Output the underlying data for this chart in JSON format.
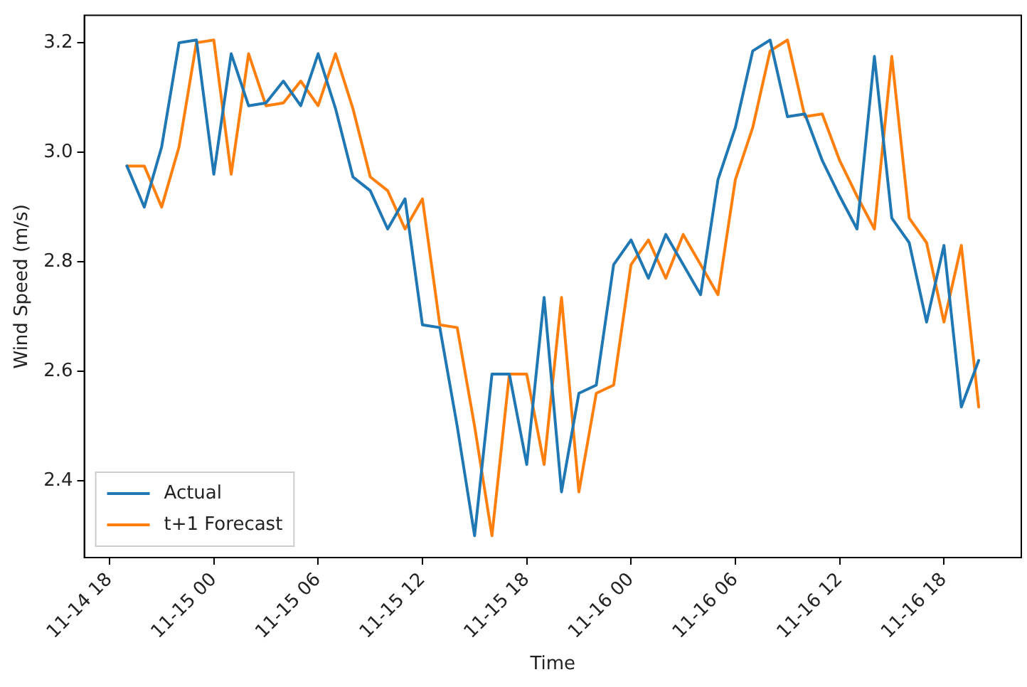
{
  "chart_data": {
    "type": "line",
    "xlabel": "Time",
    "ylabel": "Wind Speed (m/s)",
    "x": [
      "--11-14T19:00",
      "--11-14T20:00",
      "--11-14T21:00",
      "--11-14T22:00",
      "--11-14T23:00",
      "--11-15T00:00",
      "--11-15T01:00",
      "--11-15T02:00",
      "--11-15T03:00",
      "--11-15T04:00",
      "--11-15T05:00",
      "--11-15T06:00",
      "--11-15T07:00",
      "--11-15T08:00",
      "--11-15T09:00",
      "--11-15T10:00",
      "--11-15T11:00",
      "--11-15T12:00",
      "--11-15T13:00",
      "--11-15T14:00",
      "--11-15T15:00",
      "--11-15T16:00",
      "--11-15T17:00",
      "--11-15T18:00",
      "--11-15T19:00",
      "--11-15T20:00",
      "--11-15T21:00",
      "--11-15T22:00",
      "--11-15T23:00",
      "--11-16T00:00",
      "--11-16T01:00",
      "--11-16T02:00",
      "--11-16T03:00",
      "--11-16T04:00",
      "--11-16T05:00",
      "--11-16T06:00",
      "--11-16T07:00",
      "--11-16T08:00",
      "--11-16T09:00",
      "--11-16T10:00",
      "--11-16T11:00",
      "--11-16T12:00",
      "--11-16T13:00",
      "--11-16T14:00",
      "--11-16T15:00",
      "--11-16T16:00",
      "--11-16T17:00",
      "--11-16T18:00",
      "--11-16T19:00",
      "--11-16T20:00"
    ],
    "series": [
      {
        "name": "Actual",
        "color": "#1f77b4",
        "values": [
          2.975,
          2.9,
          3.01,
          3.2,
          3.205,
          2.96,
          3.18,
          3.085,
          3.09,
          3.13,
          3.085,
          3.18,
          3.08,
          2.955,
          2.93,
          2.86,
          2.915,
          2.685,
          2.68,
          2.5,
          2.3,
          2.595,
          2.595,
          2.43,
          2.735,
          2.38,
          2.56,
          2.575,
          2.795,
          2.84,
          2.77,
          2.85,
          2.795,
          2.74,
          2.95,
          3.045,
          3.185,
          3.205,
          3.065,
          3.07,
          2.985,
          2.92,
          2.86,
          3.175,
          2.88,
          2.835,
          2.69,
          2.83,
          2.535,
          2.62
        ]
      },
      {
        "name": "t+1 Forecast",
        "color": "#ff7f0e",
        "values": [
          2.975,
          2.975,
          2.9,
          3.01,
          3.2,
          3.205,
          2.96,
          3.18,
          3.085,
          3.09,
          3.13,
          3.085,
          3.18,
          3.08,
          2.955,
          2.93,
          2.86,
          2.915,
          2.685,
          2.68,
          2.5,
          2.3,
          2.595,
          2.595,
          2.43,
          2.735,
          2.38,
          2.56,
          2.575,
          2.795,
          2.84,
          2.77,
          2.85,
          2.795,
          2.74,
          2.95,
          3.045,
          3.185,
          3.205,
          3.065,
          3.07,
          2.985,
          2.92,
          2.86,
          3.175,
          2.88,
          2.835,
          2.69,
          2.83,
          2.535
        ]
      }
    ],
    "xlim": [
      "--11-14T16:33",
      "--11-16T22:27"
    ],
    "xticks": [
      {
        "value": "--11-14T18:00",
        "label": "11-14 18"
      },
      {
        "value": "--11-15T00:00",
        "label": "11-15 00"
      },
      {
        "value": "--11-15T06:00",
        "label": "11-15 06"
      },
      {
        "value": "--11-15T12:00",
        "label": "11-15 12"
      },
      {
        "value": "--11-15T18:00",
        "label": "11-15 18"
      },
      {
        "value": "--11-16T00:00",
        "label": "11-16 00"
      },
      {
        "value": "--11-16T06:00",
        "label": "11-16 06"
      },
      {
        "value": "--11-16T12:00",
        "label": "11-16 12"
      },
      {
        "value": "--11-16T18:00",
        "label": "11-16 18"
      }
    ],
    "ylim": [
      2.26,
      3.25
    ],
    "yticks": [
      {
        "value": 2.4,
        "label": "2.4"
      },
      {
        "value": 2.6,
        "label": "2.6"
      },
      {
        "value": 2.8,
        "label": "2.8"
      },
      {
        "value": 3,
        "label": "3.0"
      },
      {
        "value": 3.2,
        "label": "3.2"
      }
    ],
    "legend": "bottom left",
    "grid": false,
    "marker": "none",
    "line_style": "solid"
  }
}
